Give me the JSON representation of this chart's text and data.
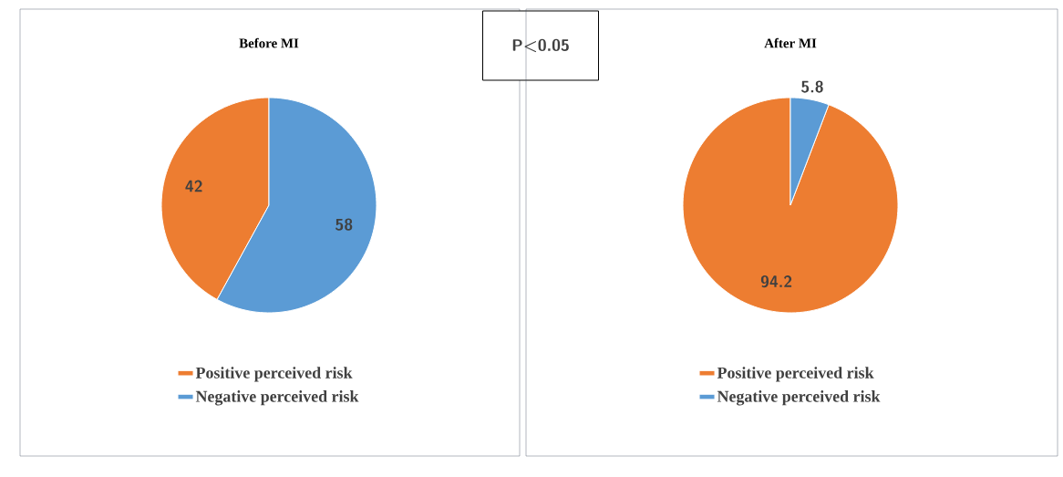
{
  "chart_data": [
    {
      "type": "pie",
      "title": "Before MI",
      "categories": [
        "Negative perceived risk",
        "Positive perceived risk"
      ],
      "values": [
        58,
        42
      ],
      "colors": [
        "#5b9bd5",
        "#ed7d31"
      ],
      "data_labels": true,
      "legend": "bottom",
      "annotations": [
        "P<0.05"
      ]
    },
    {
      "type": "pie",
      "title": "After MI",
      "categories": [
        "Negative perceived risk",
        "Positive perceived risk"
      ],
      "values": [
        5.8,
        94.2
      ],
      "colors": [
        "#5b9bd5",
        "#ed7d31"
      ],
      "data_labels": true,
      "legend": "bottom"
    }
  ]
}
